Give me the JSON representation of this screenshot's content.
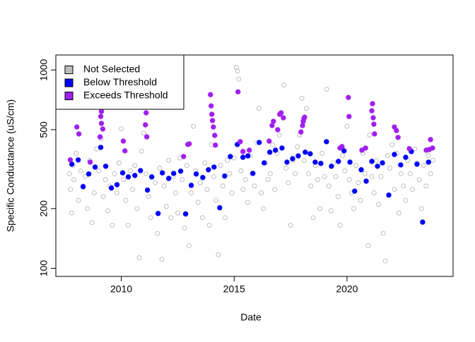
{
  "chart_data": {
    "type": "scatter",
    "x_label": "Date",
    "y_label": "Specific Conductance (uS/cm)",
    "xlim": [
      2007.1,
      2024.7
    ],
    "ylim": [
      91,
      1190
    ],
    "xticks": [
      2010,
      2015,
      2020
    ],
    "yticks": [
      100,
      200,
      500,
      1000
    ],
    "log_y": true,
    "legend": "topleft",
    "series": [
      {
        "name": "Not Selected",
        "color": "#bebebe",
        "marker": "open-circle",
        "x": [
          2007.7,
          2007.75,
          2007.8,
          2007.85,
          2007.9,
          2008.0,
          2008.1,
          2008.2,
          2008.3,
          2008.4,
          2008.5,
          2008.6,
          2008.7,
          2008.8,
          2008.9,
          2009.0,
          2009.1,
          2009.2,
          2009.3,
          2009.4,
          2009.5,
          2009.6,
          2009.7,
          2009.8,
          2009.9,
          2010.0,
          2010.1,
          2010.2,
          2010.3,
          2010.4,
          2010.5,
          2010.6,
          2010.7,
          2010.8,
          2010.9,
          2011.0,
          2011.1,
          2011.2,
          2011.3,
          2011.5,
          2011.6,
          2011.7,
          2011.8,
          2011.9,
          2012.0,
          2012.1,
          2012.2,
          2012.3,
          2012.4,
          2012.5,
          2012.6,
          2012.7,
          2012.8,
          2012.9,
          2013.0,
          2013.1,
          2013.2,
          2013.3,
          2013.4,
          2013.5,
          2013.6,
          2013.7,
          2013.8,
          2013.9,
          2014.0,
          2014.1,
          2014.2,
          2014.3,
          2014.4,
          2014.5,
          2014.6,
          2014.7,
          2014.8,
          2014.9,
          2015.0,
          2015.1,
          2015.15,
          2015.2,
          2015.3,
          2015.4,
          2015.5,
          2015.6,
          2015.7,
          2015.8,
          2015.9,
          2016.0,
          2016.1,
          2016.2,
          2016.3,
          2016.4,
          2016.5,
          2016.6,
          2016.7,
          2016.8,
          2016.9,
          2017.0,
          2017.2,
          2017.3,
          2017.4,
          2017.5,
          2017.6,
          2017.7,
          2017.8,
          2017.9,
          2018.0,
          2018.1,
          2018.2,
          2018.3,
          2018.4,
          2018.5,
          2018.6,
          2018.7,
          2018.8,
          2018.9,
          2019.0,
          2019.1,
          2019.2,
          2019.3,
          2019.4,
          2019.5,
          2019.6,
          2019.7,
          2019.8,
          2019.9,
          2020.0,
          2020.1,
          2020.2,
          2020.3,
          2020.4,
          2020.5,
          2020.6,
          2020.7,
          2020.8,
          2020.94,
          2021.0,
          2021.1,
          2021.2,
          2021.3,
          2021.4,
          2021.5,
          2021.6,
          2021.7,
          2021.8,
          2021.9,
          2022.0,
          2022.1,
          2022.2,
          2022.3,
          2022.4,
          2022.5,
          2022.6,
          2022.7,
          2022.8,
          2022.9,
          2023.0,
          2023.1,
          2023.2,
          2023.3,
          2023.4,
          2023.5,
          2023.6,
          2023.7,
          2023.8
        ],
        "values": [
          300,
          250,
          190,
          330,
          280,
          380,
          220,
          310,
          260,
          290,
          200,
          350,
          170,
          240,
          400,
          310,
          450,
          230,
          280,
          195,
          260,
          165,
          300,
          240,
          340,
          505,
          280,
          220,
          165,
          310,
          250,
          330,
          200,
          113,
          390,
          480,
          300,
          230,
          180,
          270,
          150,
          320,
          111,
          260,
          205,
          350,
          180,
          290,
          240,
          190,
          360,
          280,
          160,
          330,
          130,
          240,
          520,
          310,
          215,
          270,
          180,
          340,
          250,
          165,
          420,
          290,
          220,
          117,
          330,
          260,
          180,
          350,
          300,
          240,
          360,
          1030,
          990,
          900,
          310,
          250,
          280,
          215,
          370,
          300,
          260,
          430,
          640,
          240,
          200,
          340,
          280,
          300,
          420,
          250,
          380,
          470,
          840,
          320,
          270,
          165,
          350,
          300,
          410,
          470,
          720,
          350,
          640,
          300,
          260,
          180,
          330,
          280,
          200,
          380,
          290,
          800,
          260,
          195,
          340,
          290,
          230,
          165,
          370,
          310,
          520,
          280,
          240,
          200,
          330,
          270,
          220,
          380,
          300,
          130,
          470,
          290,
          240,
          350,
          210,
          290,
          150,
          109,
          370,
          320,
          420,
          250,
          380,
          190,
          300,
          260,
          220,
          350,
          300,
          250,
          400,
          340,
          280,
          200,
          330,
          260,
          370,
          300,
          350
        ]
      },
      {
        "name": "Below Threshold",
        "color": "#0000ff",
        "marker": "filled-circle",
        "x": [
          2007.81,
          2008.09,
          2008.31,
          2008.56,
          2008.84,
          2009.09,
          2009.31,
          2009.56,
          2009.81,
          2010.06,
          2010.31,
          2010.6,
          2010.85,
          2011.16,
          2011.35,
          2011.63,
          2011.82,
          2012.1,
          2012.32,
          2012.63,
          2012.85,
          2013.1,
          2013.32,
          2013.61,
          2013.86,
          2014.11,
          2014.36,
          2014.58,
          2014.83,
          2015.14,
          2015.39,
          2015.61,
          2015.83,
          2016.11,
          2016.33,
          2016.58,
          2016.83,
          2017.12,
          2017.34,
          2017.59,
          2017.84,
          2018.15,
          2018.37,
          2018.59,
          2018.84,
          2019.09,
          2019.31,
          2019.62,
          2019.87,
          2020.13,
          2020.34,
          2020.63,
          2020.85,
          2021.1,
          2021.35,
          2021.57,
          2021.85,
          2022.1,
          2022.38,
          2022.6,
          2022.85,
          2023.1,
          2023.35,
          2023.61
        ],
        "values": [
          335,
          352,
          258,
          299,
          324,
          407,
          327,
          254,
          264,
          303,
          289,
          294,
          311,
          248,
          289,
          189,
          303,
          284,
          301,
          309,
          188,
          262,
          299,
          287,
          314,
          324,
          202,
          292,
          366,
          421,
          363,
          369,
          301,
          431,
          340,
          385,
          394,
          404,
          343,
          357,
          369,
          385,
          378,
          343,
          338,
          435,
          327,
          346,
          391,
          343,
          245,
          314,
          275,
          346,
          327,
          340,
          234,
          375,
          332,
          363,
          388,
          335,
          171,
          343
        ]
      },
      {
        "name": "Exceeds Threshold",
        "color": "#a020f0",
        "marker": "filled-circle",
        "x": [
          2007.74,
          2008.03,
          2008.12,
          2008.62,
          2009.06,
          2009.09,
          2009.12,
          2009.12,
          2009.18,
          2010.16,
          2010.09,
          2011.07,
          2011.03,
          2011.1,
          2011.13,
          2012.76,
          2012.95,
          2013.01,
          2013.95,
          2013.98,
          2014.01,
          2014.04,
          2014.08,
          2014.14,
          2014.17,
          2015.17,
          2015.27,
          2015.39,
          2015.67,
          2016.55,
          2016.68,
          2016.74,
          2016.93,
          2017.02,
          2017.08,
          2017.18,
          2017.96,
          2018.03,
          2018.06,
          2018.09,
          2018.12,
          2019.69,
          2019.78,
          2020.06,
          2020.09,
          2020.66,
          2020.82,
          2021.1,
          2021.13,
          2021.16,
          2021.19,
          2021.22,
          2022.1,
          2022.19,
          2022.26,
          2022.76,
          2023.51,
          2023.64,
          2023.7,
          2023.79
        ],
        "values": [
          352,
          516,
          476,
          343,
          460,
          583,
          618,
          538,
          504,
          391,
          438,
          529,
          649,
          608,
          460,
          366,
          421,
          424,
          751,
          659,
          598,
          556,
          516,
          468,
          418,
          776,
          435,
          388,
          394,
          438,
          525,
          551,
          500,
          598,
          608,
          574,
          487,
          525,
          551,
          569,
          578,
          404,
          411,
          727,
          583,
          394,
          404,
          623,
          676,
          574,
          533,
          476,
          516,
          495,
          457,
          401,
          394,
          397,
          446,
          404
        ]
      }
    ]
  }
}
